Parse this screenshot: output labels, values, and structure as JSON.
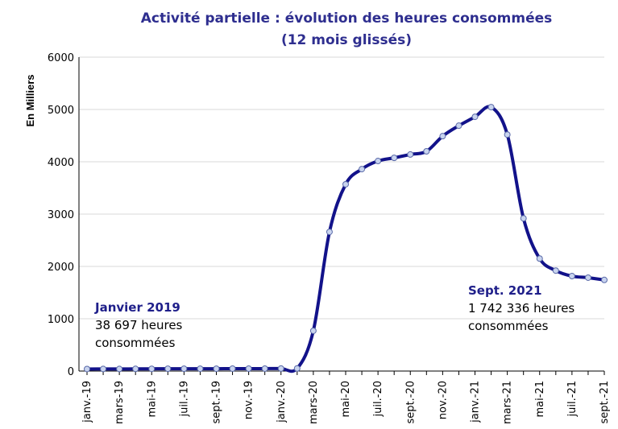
{
  "chart_data": {
    "type": "line",
    "title": [
      "Activité partielle : évolution des heures consommées",
      "(12 mois glissés)"
    ],
    "y_label": "En Milliers",
    "categories": [
      "janv.-19",
      null,
      "mars-19",
      null,
      "mai-19",
      null,
      "juil.-19",
      null,
      "sept.-19",
      null,
      "nov.-19",
      null,
      "janv.-20",
      null,
      "mars-20",
      null,
      "mai-20",
      null,
      "juil.-20",
      null,
      "sept.-20",
      null,
      "nov.-20",
      null,
      "janv.-21",
      null,
      "mars-21",
      null,
      "mai-21",
      null,
      "juil.-21",
      null,
      "sept.-21"
    ],
    "series": [
      {
        "name": "Heures consommées",
        "color": "#12128a",
        "marker_fill": "#c9d4ef",
        "values": [
          39,
          40,
          40,
          42,
          43,
          44,
          44,
          45,
          45,
          46,
          46,
          47,
          48,
          50,
          770,
          2660,
          3570,
          3860,
          4015,
          4075,
          4140,
          4200,
          4490,
          4690,
          4860,
          5045,
          4520,
          2920,
          2150,
          1920,
          1815,
          1785,
          1742
        ]
      }
    ],
    "ylim": [
      0,
      6000
    ],
    "yticks": [
      0,
      1000,
      2000,
      3000,
      4000,
      5000,
      6000
    ],
    "grid": true,
    "annotations": [
      {
        "head": "Janvier 2019",
        "lines": [
          "38 697 heures",
          "consommées"
        ]
      },
      {
        "head": "Sept. 2021",
        "lines": [
          "1 742 336 heures",
          "consommées"
        ]
      }
    ]
  }
}
